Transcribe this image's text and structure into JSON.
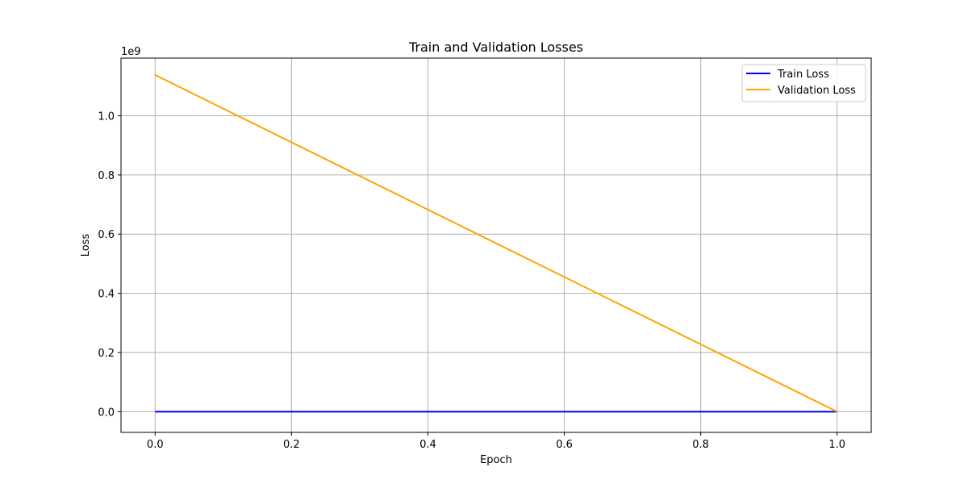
{
  "chart_data": {
    "type": "line",
    "title": "Train and Validation Losses",
    "xlabel": "Epoch",
    "ylabel": "Loss",
    "y_offset_label": "1e9",
    "y_scale_factor": 1000000000,
    "xlim": [
      -0.05,
      1.05
    ],
    "ylim": [
      -70000000,
      1195000000
    ],
    "x_ticks": [
      0.0,
      0.2,
      0.4,
      0.6,
      0.8,
      1.0
    ],
    "x_tick_labels": [
      "0.0",
      "0.2",
      "0.4",
      "0.6",
      "0.8",
      "1.0"
    ],
    "y_ticks": [
      0,
      200000000,
      400000000,
      600000000,
      800000000,
      1000000000
    ],
    "y_tick_labels": [
      "0.0",
      "0.2",
      "0.4",
      "0.6",
      "0.8",
      "1.0"
    ],
    "grid": true,
    "legend_position": "top-right",
    "series": [
      {
        "name": "Train Loss",
        "color": "#0000ff",
        "x": [
          0,
          1
        ],
        "y": [
          0,
          0
        ]
      },
      {
        "name": "Validation Loss",
        "color": "#ffa500",
        "x": [
          0,
          1
        ],
        "y": [
          1138000000,
          0
        ]
      }
    ]
  }
}
